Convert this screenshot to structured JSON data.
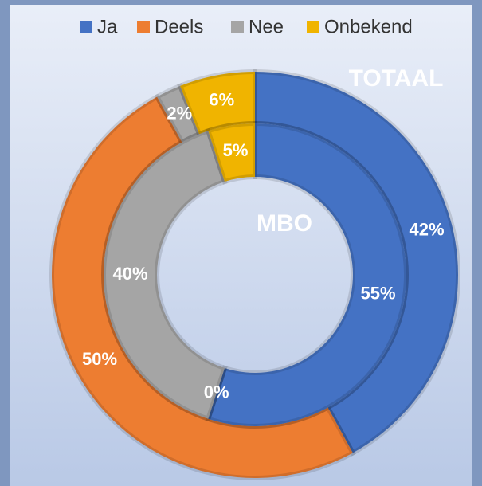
{
  "chart_data": {
    "type": "donut",
    "categories": [
      "Ja",
      "Deels",
      "Nee",
      "Onbekend"
    ],
    "colors": [
      "#4472c4",
      "#ed7d31",
      "#a5a5a5",
      "#f0b400"
    ],
    "series": [
      {
        "name": "TOTAAL",
        "values": [
          42,
          50,
          2,
          6
        ],
        "value_labels": [
          "42%",
          "50%",
          "2%",
          "6%"
        ]
      },
      {
        "name": "MBO",
        "values": [
          55,
          0,
          40,
          5
        ],
        "value_labels": [
          "55%",
          "0%",
          "40%",
          "5%"
        ]
      }
    ],
    "legend": "top"
  }
}
